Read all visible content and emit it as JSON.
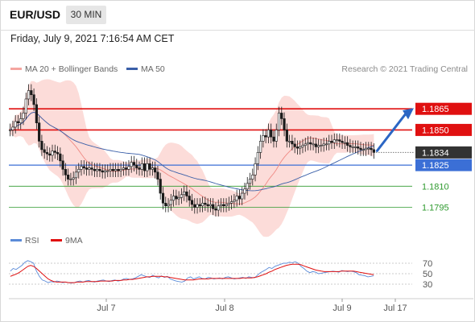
{
  "header": {
    "symbol": "EUR/USD",
    "timeframe": "30 MIN"
  },
  "timestamp": "Friday, July 9, 2021 7:16:54 AM CET",
  "legend": {
    "ma20": "MA 20 + Bollinger Bands",
    "ma50": "MA 50",
    "rsi": "RSI",
    "rsi_ma": "9MA",
    "copyright": "Research © 2021 Trading Central"
  },
  "colors": {
    "up": "#1a1a1a",
    "down": "#1a1a1a",
    "band": "#fbd0cc",
    "ma20": "#f08a84",
    "ma50": "#3a5fa8",
    "resistance": "#e01010",
    "support": "#2e9a2e",
    "pivot": "#3b6fd6",
    "rsi": "#5b8bd8",
    "rsi_ma": "#e01010",
    "arrow": "#2b66c4"
  },
  "chart_data": [
    {
      "type": "candlestick",
      "ylim": [
        1.7765,
        1.1888
      ],
      "y_ticks_note": "price axis",
      "price_levels": [
        {
          "label": "1.1865",
          "value": 1.1865,
          "kind": "resistance"
        },
        {
          "label": "1.1850",
          "value": 1.185,
          "kind": "resistance"
        },
        {
          "label": "1.1834",
          "value": 1.1834,
          "kind": "last"
        },
        {
          "label": "1.1825",
          "value": 1.1825,
          "kind": "pivot"
        },
        {
          "label": "1.1810",
          "value": 1.181,
          "kind": "support"
        },
        {
          "label": "1.1795",
          "value": 1.1795,
          "kind": "support"
        }
      ],
      "x_labels": [
        "Jul 7",
        "Jul 8",
        "Jul 9",
        "Jul 17"
      ],
      "close": [
        1.185,
        1.1852,
        1.1856,
        1.1855,
        1.1858,
        1.1862,
        1.1872,
        1.1878,
        1.1875,
        1.1868,
        1.1855,
        1.1842,
        1.1836,
        1.1834,
        1.1833,
        1.1832,
        1.1835,
        1.1834,
        1.1833,
        1.1828,
        1.1822,
        1.1818,
        1.1815,
        1.1815,
        1.1816,
        1.182,
        1.1822,
        1.1824,
        1.1823,
        1.1822,
        1.1823,
        1.1822,
        1.1821,
        1.1822,
        1.1821,
        1.182,
        1.1821,
        1.1821,
        1.1822,
        1.1821,
        1.1822,
        1.1821,
        1.1822,
        1.1823,
        1.1822,
        1.1824,
        1.1827,
        1.1825,
        1.1823,
        1.1822,
        1.1826,
        1.1821,
        1.1826,
        1.1822,
        1.1823,
        1.182,
        1.1815,
        1.1805,
        1.1798,
        1.1796,
        1.1797,
        1.18,
        1.1803,
        1.1801,
        1.1802,
        1.1804,
        1.1806,
        1.1803,
        1.18,
        1.1797,
        1.1795,
        1.1797,
        1.1796,
        1.1798,
        1.1797,
        1.1796,
        1.1797,
        1.1794,
        1.1793,
        1.1796,
        1.1797,
        1.1796,
        1.1797,
        1.1798,
        1.1799,
        1.18,
        1.1803,
        1.1801,
        1.1805,
        1.1808,
        1.1812,
        1.1815,
        1.1818,
        1.1826,
        1.1834,
        1.1842,
        1.1846,
        1.1845,
        1.185,
        1.1845,
        1.1842,
        1.185,
        1.1862,
        1.1858,
        1.185,
        1.1842,
        1.1842,
        1.184,
        1.1838,
        1.1837,
        1.1838,
        1.1839,
        1.184,
        1.1841,
        1.184,
        1.184,
        1.1838,
        1.1839,
        1.1839,
        1.184,
        1.184,
        1.1842,
        1.1841,
        1.1843,
        1.1843,
        1.1842,
        1.1841,
        1.1841,
        1.1839,
        1.1838,
        1.1838,
        1.1838,
        1.1837,
        1.1836,
        1.1836,
        1.1837,
        1.1837,
        1.1836,
        1.1834
      ],
      "arrow_target": 1.1865
    },
    {
      "type": "line",
      "name": "RSI",
      "y_ticks": [
        70,
        50,
        30
      ],
      "ylim": [
        10,
        90
      ],
      "rsi": [
        55,
        60,
        58,
        62,
        66,
        72,
        75,
        73,
        70,
        55,
        45,
        38,
        36,
        33,
        35,
        34,
        36,
        35,
        33,
        34,
        33,
        32,
        33,
        35,
        36,
        34,
        36,
        37,
        35,
        34,
        36,
        37,
        38,
        36,
        35,
        37,
        38,
        36,
        37,
        40,
        41,
        39,
        40,
        42,
        45,
        48,
        46,
        44,
        43,
        47,
        44,
        42,
        46,
        43,
        45,
        40,
        38,
        36,
        35,
        34,
        36,
        42,
        44,
        40,
        42,
        44,
        41,
        40,
        43,
        42,
        40,
        41,
        42,
        40,
        43,
        44,
        42,
        40,
        41,
        42,
        43,
        41,
        44,
        43,
        42,
        47,
        52,
        55,
        58,
        62,
        60,
        64,
        66,
        68,
        70,
        70,
        72,
        71,
        73,
        70,
        64,
        60,
        55,
        52,
        54,
        53,
        50,
        51,
        52,
        53,
        54,
        55,
        54,
        53,
        56,
        55,
        54,
        55,
        54,
        52,
        48,
        47,
        46,
        44,
        45,
        46
      ],
      "rsi_ma": [
        45,
        47,
        49,
        52,
        56,
        60,
        64,
        66,
        64,
        60,
        55,
        50,
        45,
        40,
        37,
        35,
        34,
        34,
        34,
        34,
        33,
        33,
        33,
        34,
        34,
        34,
        35,
        35,
        35,
        35,
        35,
        36,
        36,
        36,
        36,
        36,
        37,
        37,
        37,
        38,
        38,
        39,
        39,
        40,
        41,
        42,
        43,
        44,
        44,
        45,
        45,
        45,
        45,
        44,
        44,
        43,
        42,
        41,
        40,
        39,
        38,
        38,
        38,
        38,
        39,
        40,
        40,
        40,
        40,
        41,
        41,
        41,
        41,
        41,
        41,
        41,
        41,
        41,
        41,
        41,
        42,
        42,
        42,
        42,
        43,
        44,
        46,
        48,
        50,
        53,
        55,
        58,
        60,
        62,
        64,
        66,
        67,
        68,
        68,
        68,
        67,
        65,
        63,
        61,
        59,
        57,
        56,
        55,
        54,
        54,
        54,
        54,
        54,
        54,
        55,
        55,
        55,
        55,
        55,
        54,
        53,
        52,
        51,
        50,
        49,
        48
      ]
    }
  ]
}
